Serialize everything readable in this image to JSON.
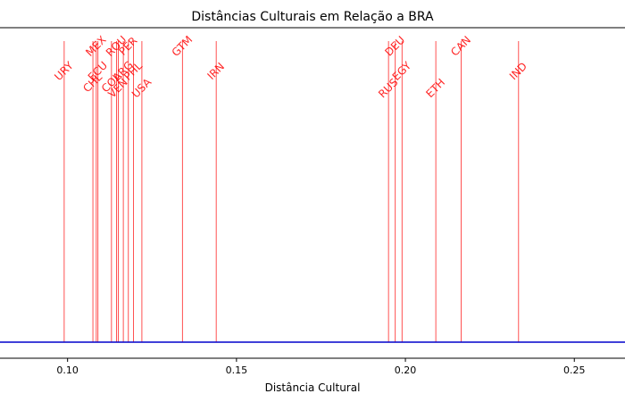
{
  "chart_data": {
    "type": "event-plot",
    "title": "Distâncias Culturais em Relação a BRA",
    "xlabel": "Distância Cultural",
    "ylabel": "",
    "xlim": [
      0.08,
      0.265
    ],
    "xticks": [
      0.1,
      0.15,
      0.2,
      0.25
    ],
    "xtick_labels": [
      "0.10",
      "0.15",
      "0.20",
      "0.25"
    ],
    "baseline_color": "#0000cc",
    "marker_color": "#ff0000",
    "points": [
      {
        "label": "URY",
        "x": 0.099,
        "row": 1
      },
      {
        "label": "CHL",
        "x": 0.1075,
        "row": 2
      },
      {
        "label": "MEX",
        "x": 0.1085,
        "row": 0
      },
      {
        "label": "ECU",
        "x": 0.109,
        "row": 1
      },
      {
        "label": "COL",
        "x": 0.113,
        "row": 2
      },
      {
        "label": "ROU",
        "x": 0.1145,
        "row": 0
      },
      {
        "label": "VEN",
        "x": 0.115,
        "row": 3
      },
      {
        "label": "ARG",
        "x": 0.1165,
        "row": 1
      },
      {
        "label": "PER",
        "x": 0.118,
        "row": 0
      },
      {
        "label": "PHL",
        "x": 0.1195,
        "row": 1
      },
      {
        "label": "USA",
        "x": 0.122,
        "row": 3
      },
      {
        "label": "GTM",
        "x": 0.134,
        "row": 0
      },
      {
        "label": "IRN",
        "x": 0.144,
        "row": 1
      },
      {
        "label": "RUS",
        "x": 0.195,
        "row": 3
      },
      {
        "label": "DEU",
        "x": 0.197,
        "row": 0
      },
      {
        "label": "EGY",
        "x": 0.199,
        "row": 1
      },
      {
        "label": "ETH",
        "x": 0.209,
        "row": 3
      },
      {
        "label": "CAN",
        "x": 0.2165,
        "row": 0
      },
      {
        "label": "IND",
        "x": 0.2335,
        "row": 1
      }
    ]
  }
}
